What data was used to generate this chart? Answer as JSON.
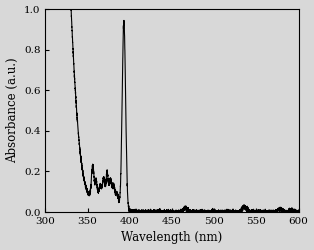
{
  "xlabel": "Wavelength (nm)",
  "ylabel": "Absorbance (a.u.)",
  "xlim": [
    300,
    600
  ],
  "ylim": [
    0.0,
    1.0
  ],
  "xticks": [
    300,
    350,
    400,
    450,
    500,
    550,
    600
  ],
  "yticks": [
    0.0,
    0.2,
    0.4,
    0.6,
    0.8,
    1.0
  ],
  "line_color": "black",
  "line_width": 0.8,
  "bg_color": "#d8d8d8",
  "axes_bg": "#d8d8d8"
}
